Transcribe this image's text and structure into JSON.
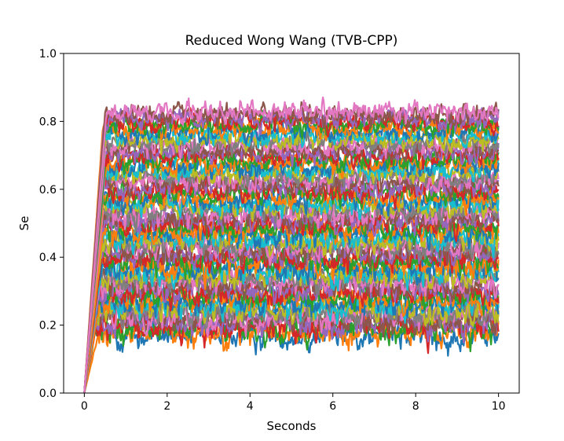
{
  "chart_data": {
    "type": "line",
    "title": "Reduced Wong Wang (TVB-CPP)",
    "xlabel": "Seconds",
    "ylabel": "Se",
    "xlim": [
      -0.5,
      10.5
    ],
    "ylim": [
      0.0,
      1.0
    ],
    "xticks": [
      0,
      2,
      4,
      6,
      8,
      10
    ],
    "xtick_labels": [
      "0",
      "2",
      "4",
      "6",
      "8",
      "10"
    ],
    "yticks": [
      0.0,
      0.2,
      0.4,
      0.6,
      0.8,
      1.0
    ],
    "ytick_labels": [
      "0.0",
      "0.2",
      "0.4",
      "0.6",
      "0.8",
      "1.0"
    ],
    "t_start": 0.0,
    "t_end": 10.0,
    "rise_duration": 0.45,
    "grid": false,
    "legend": "none",
    "palette": [
      "#1f77b4",
      "#ff7f0e",
      "#2ca02c",
      "#d62728",
      "#9467bd",
      "#8c564b",
      "#e377c2",
      "#7f7f7f",
      "#bcbd22",
      "#17becf"
    ],
    "series_steady_levels": [
      0.17,
      0.18,
      0.19,
      0.2,
      0.21,
      0.22,
      0.23,
      0.24,
      0.25,
      0.26,
      0.27,
      0.28,
      0.29,
      0.3,
      0.31,
      0.32,
      0.33,
      0.34,
      0.35,
      0.36,
      0.37,
      0.38,
      0.39,
      0.4,
      0.41,
      0.42,
      0.43,
      0.44,
      0.45,
      0.46,
      0.47,
      0.48,
      0.49,
      0.5,
      0.51,
      0.52,
      0.53,
      0.54,
      0.55,
      0.56,
      0.57,
      0.58,
      0.59,
      0.6,
      0.61,
      0.62,
      0.63,
      0.64,
      0.65,
      0.66,
      0.67,
      0.68,
      0.69,
      0.7,
      0.71,
      0.72,
      0.73,
      0.74,
      0.75,
      0.76,
      0.77,
      0.78,
      0.79,
      0.8,
      0.81,
      0.82,
      0.83
    ],
    "noise_amplitude": 0.025
  }
}
